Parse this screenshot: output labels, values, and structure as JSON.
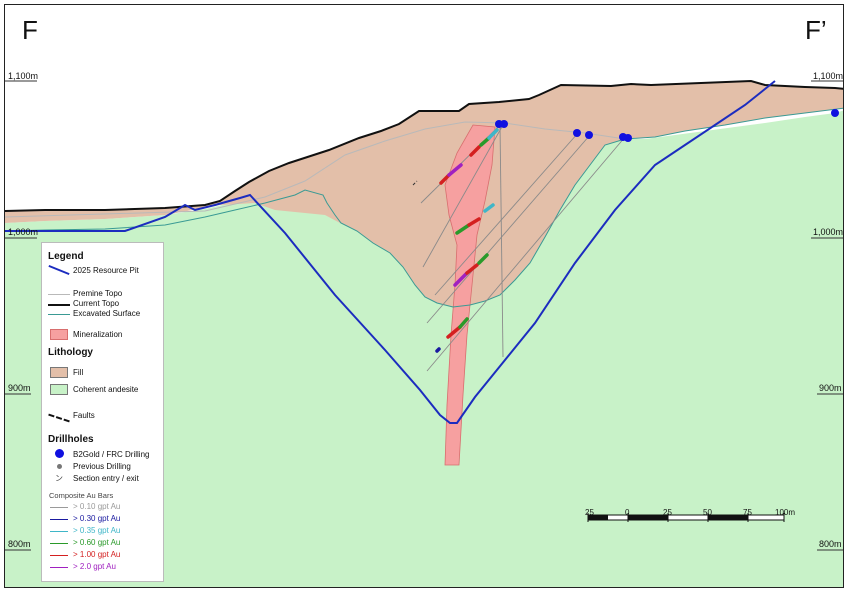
{
  "section": {
    "left_label": "F",
    "right_label": "F’"
  },
  "elevations": {
    "e1100": "1,100m",
    "e1000": "1,000m",
    "e900": "900m",
    "e800": "800m"
  },
  "legend": {
    "title": "Legend",
    "pit": "2025 Resource Pit",
    "premine": "Premine Topo",
    "current": "Current Topo",
    "excavated": "Excavated Surface",
    "mineralization": "Mineralization",
    "lithology_title": "Lithology",
    "fill": "Fill",
    "andesite": "Coherent andesite",
    "faults": "Faults",
    "drillholes_title": "Drillholes",
    "b2gold": "B2Gold / FRC Drilling",
    "previous": "Previous Drilling",
    "section_entry": "Section entry / exit",
    "composite_title": "Composite Au Bars",
    "composites": [
      {
        "label": "> 0.10 gpt Au",
        "color": "#9a9a9a"
      },
      {
        "label": "> 0.30 gpt Au",
        "color": "#1a1aa0"
      },
      {
        "label": "> 0.35 gpt Au",
        "color": "#3fb6c8"
      },
      {
        "label": "> 0.60 gpt Au",
        "color": "#2a9a2a"
      },
      {
        "label": "> 1.00 gpt Au",
        "color": "#d42020"
      },
      {
        "label": "> 2.0 gpt Au",
        "color": "#a020c0"
      }
    ]
  },
  "colors": {
    "andesite": "#c8f2c8",
    "fill": "#e3bfa9",
    "mineralization": "#f6a0a0",
    "pit": "#1c2cbf",
    "current_topo": "#111111",
    "excavated": "#3a9a94"
  },
  "scale_bar": {
    "labels": [
      "25",
      "0",
      "25",
      "50",
      "75",
      "100m"
    ]
  }
}
